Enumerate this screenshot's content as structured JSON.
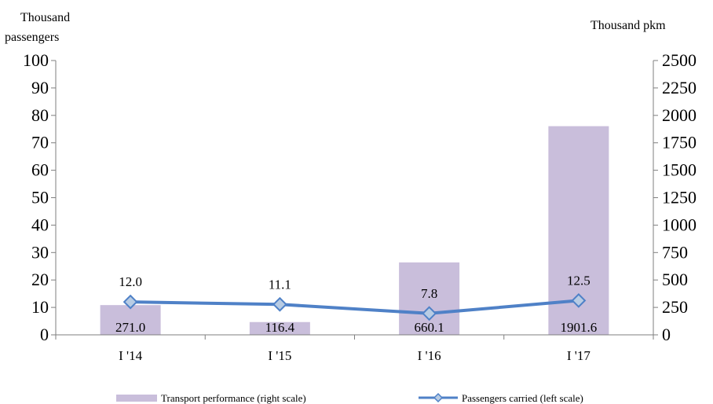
{
  "chart_data": {
    "type": "bar+line",
    "categories": [
      "I '14",
      "I '15",
      "I '16",
      "I '17"
    ],
    "series": [
      {
        "name": "Transport performance (right scale)",
        "type": "bar",
        "axis": "right",
        "values": [
          271.0,
          116.4,
          660.1,
          1901.6
        ],
        "labels": [
          "271.0",
          "116.4",
          "660.1",
          "1901.6"
        ],
        "color": "#c9bedb"
      },
      {
        "name": "Passengers carried (left scale)",
        "type": "line",
        "axis": "left",
        "values": [
          12.0,
          11.1,
          7.8,
          12.5
        ],
        "labels": [
          "12.0",
          "11.1",
          "7.8",
          "12.5"
        ],
        "color": "#4f81c7",
        "marker": "diamond",
        "marker_fill": "#b8cce4"
      }
    ],
    "y_left": {
      "label_lines": [
        "Thousand",
        "passengers"
      ],
      "ylim": [
        0,
        100
      ],
      "ticks": [
        0,
        10,
        20,
        30,
        40,
        50,
        60,
        70,
        80,
        90,
        100
      ]
    },
    "y_right": {
      "label": "Thousand pkm",
      "ylim": [
        0,
        2500
      ],
      "ticks": [
        0,
        250,
        500,
        750,
        1000,
        1250,
        1500,
        1750,
        2000,
        2250,
        2500
      ]
    },
    "grid": false,
    "legend_position": "bottom"
  }
}
